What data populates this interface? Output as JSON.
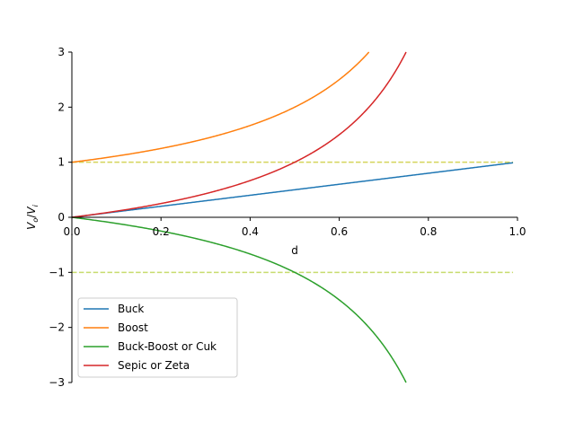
{
  "chart_data": {
    "type": "line",
    "title": "",
    "xlabel": "d",
    "ylabel_main": "V",
    "ylabel_sub1": "o",
    "ylabel_sep": "/",
    "ylabel_sub2": "i",
    "xlim": [
      0,
      1
    ],
    "ylim": [
      -3,
      3
    ],
    "xticks": [
      0.0,
      0.2,
      0.4,
      0.6,
      0.8,
      1.0
    ],
    "xtick_labels": [
      "0.0",
      "0.2",
      "0.4",
      "0.6",
      "0.8",
      "1.0"
    ],
    "yticks": [
      3,
      2,
      1,
      0,
      -1,
      -2,
      -3
    ],
    "ytick_labels": [
      "3",
      "2",
      "1",
      "0",
      "−1",
      "−2",
      "−3"
    ],
    "grid": false,
    "legend_position": "lower-left",
    "series": [
      {
        "name": "Buck",
        "formula": "d",
        "color": "#1f77b4"
      },
      {
        "name": "Boost",
        "formula": "1/(1-d)",
        "color": "#ff7f0e"
      },
      {
        "name": "Buck-Boost or Cuk",
        "formula": "-d/(1-d)",
        "color": "#2ca02c"
      },
      {
        "name": "Sepic or Zeta",
        "formula": "d/(1-d)",
        "color": "#d62728"
      }
    ],
    "d_range": [
      0,
      0.99
    ],
    "reference_lines": [
      {
        "y": 1,
        "style": "dashed",
        "color": "#d4d45a"
      },
      {
        "y": -1,
        "style": "dashed",
        "color": "#c8dc6e"
      }
    ]
  }
}
